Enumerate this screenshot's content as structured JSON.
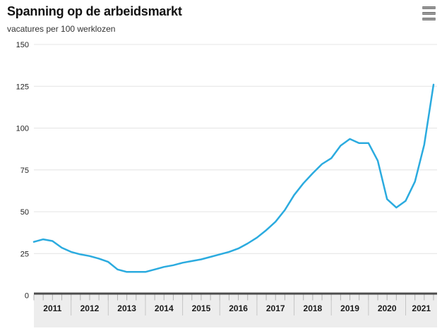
{
  "header": {
    "title": "Spanning op de arbeidsmarkt",
    "subtitle": "vacatures per 100 werklozen",
    "menu_icon": "hamburger-menu-icon"
  },
  "colors": {
    "line": "#2babdf",
    "gridline": "#e4e4e4",
    "axis_band_bg": "#ededed",
    "axis_top_line": "#4d4d4d",
    "quarter_tick": "#b3b3b3",
    "year_separator": "#c6c6c6",
    "y_label": "#222222",
    "year_label": "#1a1a1a"
  },
  "chart_data": {
    "type": "line",
    "title": "Spanning op de arbeidsmarkt",
    "subtitle": "vacatures per 100 werklozen",
    "ylabel": "vacatures per 100 werklozen",
    "xlabel": "",
    "x": [
      "2011Q1",
      "2011Q2",
      "2011Q3",
      "2011Q4",
      "2012Q1",
      "2012Q2",
      "2012Q3",
      "2012Q4",
      "2013Q1",
      "2013Q2",
      "2013Q3",
      "2013Q4",
      "2014Q1",
      "2014Q2",
      "2014Q3",
      "2014Q4",
      "2015Q1",
      "2015Q2",
      "2015Q3",
      "2015Q4",
      "2016Q1",
      "2016Q2",
      "2016Q3",
      "2016Q4",
      "2017Q1",
      "2017Q2",
      "2017Q3",
      "2017Q4",
      "2018Q1",
      "2018Q2",
      "2018Q3",
      "2018Q4",
      "2019Q1",
      "2019Q2",
      "2019Q3",
      "2019Q4",
      "2020Q1",
      "2020Q2",
      "2020Q3",
      "2020Q4",
      "2021Q1",
      "2021Q2",
      "2021Q3",
      "2021Q4"
    ],
    "values": [
      32,
      33.5,
      32.5,
      28.5,
      26,
      24.5,
      23.5,
      22,
      20,
      15.5,
      14,
      14,
      14,
      15.5,
      17,
      18,
      19.5,
      20.5,
      21.5,
      23,
      24.5,
      26,
      28,
      31,
      34.5,
      39,
      44,
      51,
      60,
      67,
      73,
      78.5,
      82,
      89.5,
      93.5,
      91,
      91,
      80.5,
      57.5,
      52.5,
      56.5,
      68,
      90,
      126
    ],
    "xticks": [
      "2011",
      "2012",
      "2013",
      "2014",
      "2015",
      "2016",
      "2017",
      "2018",
      "2019",
      "2020",
      "2021"
    ],
    "yticks": [
      0,
      25,
      50,
      75,
      100,
      125,
      150
    ],
    "ylim": [
      0,
      150
    ],
    "grid": true,
    "legend": false,
    "series_color": "#2babdf"
  }
}
